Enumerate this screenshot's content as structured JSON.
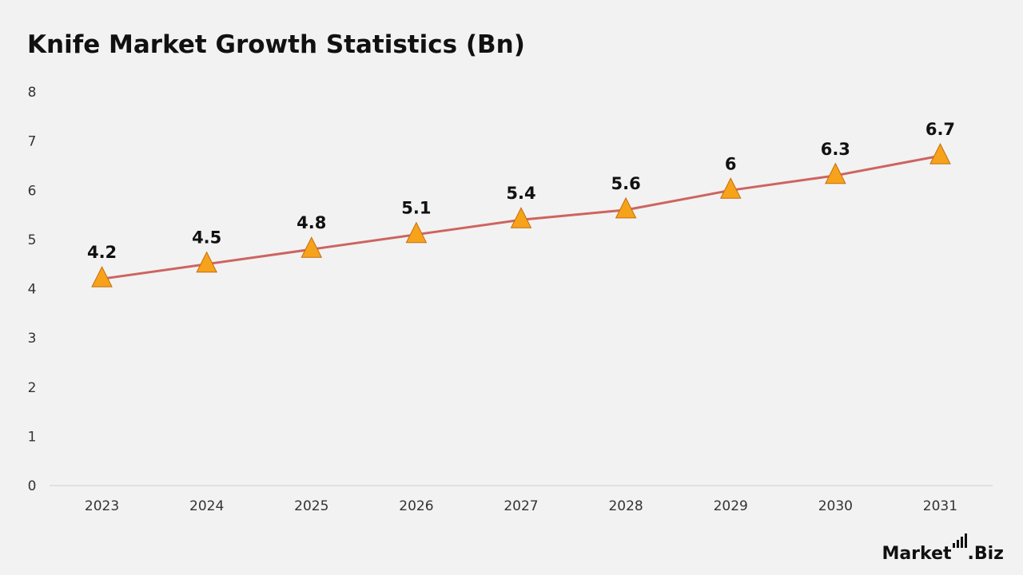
{
  "title": "Knife Market Growth Statistics (Bn)",
  "colors": {
    "line": "#cd6460",
    "marker_fill": "#f7a21b",
    "marker_stroke": "#c46d0c",
    "axis": "#d0d0d0",
    "background": "#f2f2f2"
  },
  "brand": {
    "logo_text": "Market.Biz"
  },
  "chart_data": {
    "type": "line",
    "title": "Knife Market Growth Statistics (Bn)",
    "xlabel": "",
    "ylabel": "",
    "categories": [
      "2023",
      "2024",
      "2025",
      "2026",
      "2027",
      "2028",
      "2029",
      "2030",
      "2031"
    ],
    "values": [
      4.2,
      4.5,
      4.8,
      5.1,
      5.4,
      5.6,
      6,
      6.3,
      6.7
    ],
    "data_labels": [
      "4.2",
      "4.5",
      "4.8",
      "5.1",
      "5.4",
      "5.6",
      "6",
      "6.3",
      "6.7"
    ],
    "ylim": [
      0,
      8
    ],
    "yticks": [
      0,
      1,
      2,
      3,
      4,
      5,
      6,
      7,
      8
    ],
    "marker": "triangle",
    "grid": false,
    "legend": "none"
  }
}
